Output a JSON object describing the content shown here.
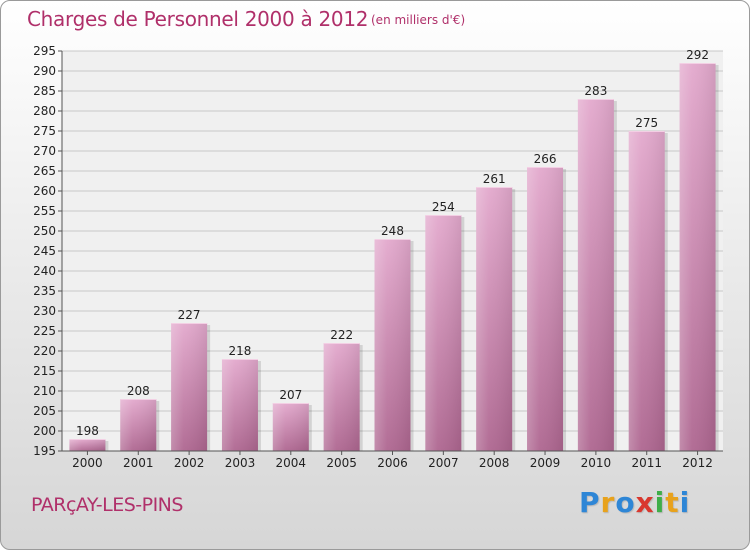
{
  "title": "Charges de Personnel 2000 à 2012",
  "unit_note": "(en milliers d'€)",
  "commune": "PARçAY-LES-PINS",
  "logo": {
    "letters": [
      "P",
      "r",
      "o",
      "x",
      "i",
      "t",
      "i"
    ]
  },
  "colors": {
    "bar_top": "#e3a9cd",
    "bar_bottom": "#ae6690",
    "title": "#b0306a",
    "grid": "#c8c8c8"
  },
  "chart_data": {
    "type": "bar",
    "title": "Charges de Personnel 2000 à 2012",
    "subtitle": "(en milliers d'€)",
    "categories": [
      "2000",
      "2001",
      "2002",
      "2003",
      "2004",
      "2005",
      "2006",
      "2007",
      "2008",
      "2009",
      "2010",
      "2011",
      "2012"
    ],
    "values": [
      198,
      208,
      227,
      218,
      207,
      222,
      248,
      254,
      261,
      266,
      283,
      275,
      292
    ],
    "ylim": [
      195,
      295
    ],
    "yticks": [
      195,
      200,
      205,
      210,
      215,
      220,
      225,
      230,
      235,
      240,
      245,
      250,
      255,
      260,
      265,
      270,
      275,
      280,
      285,
      290,
      295
    ],
    "grid": true,
    "legend": "none"
  }
}
